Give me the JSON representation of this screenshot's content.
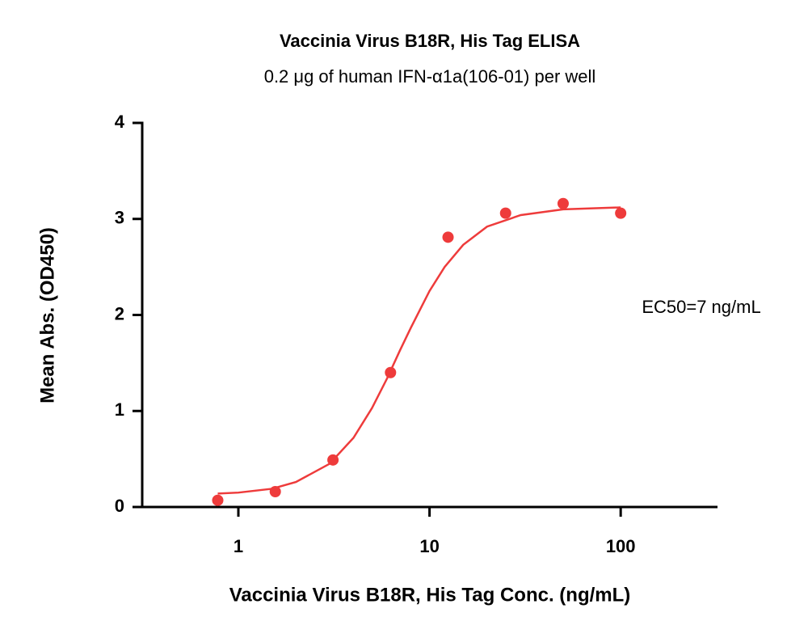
{
  "chart_data": {
    "type": "scatter",
    "title": "Vaccinia Virus B18R, His Tag ELISA",
    "subtitle": "0.2 μg of human IFN-α1a(106-01) per well",
    "x_label": "Vaccinia Virus B18R, His Tag Conc. (ng/mL)",
    "y_label": "Mean Abs. (OD450)",
    "annotation": "EC50=7 ng/mL",
    "x_log": true,
    "xlim": [
      0.314,
      321
    ],
    "xticks": [
      1,
      10,
      100
    ],
    "ylim": [
      0,
      4
    ],
    "yticks": [
      0,
      1,
      2,
      3,
      4
    ],
    "series": [
      {
        "kind": "points",
        "color": "#ee3b3b",
        "x": [
          0.78,
          1.56,
          3.125,
          6.25,
          12.5,
          25,
          50,
          100
        ],
        "values": [
          0.07,
          0.16,
          0.49,
          1.4,
          2.81,
          3.06,
          3.16,
          3.06
        ]
      },
      {
        "kind": "line",
        "color": "#ee3b3b",
        "x": [
          0.78,
          1,
          1.5,
          2,
          3,
          4,
          5,
          6,
          7,
          8,
          10,
          12,
          15,
          20,
          30,
          50,
          100
        ],
        "values": [
          0.14,
          0.15,
          0.19,
          0.26,
          0.45,
          0.72,
          1.03,
          1.34,
          1.63,
          1.87,
          2.25,
          2.5,
          2.73,
          2.92,
          3.04,
          3.1,
          3.12
        ]
      }
    ]
  }
}
